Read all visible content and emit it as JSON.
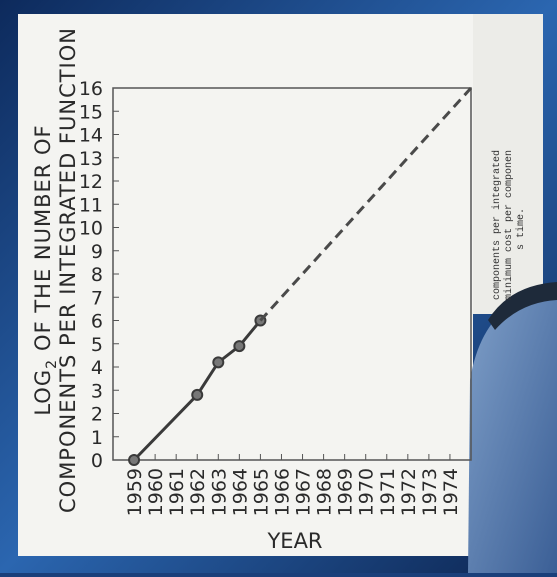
{
  "chart_data": {
    "type": "line",
    "y_label_line1": {
      "base": "LOG",
      "subscript": "2",
      "rest": "OF THE NUMBER OF"
    },
    "y_label_line2": "COMPONENTS PER INTEGRATED FUNCTION",
    "x_label": "YEAR",
    "xlim": [
      1958,
      1975
    ],
    "xticks": [
      1959,
      1960,
      1961,
      1962,
      1963,
      1964,
      1965,
      1966,
      1967,
      1968,
      1969,
      1970,
      1971,
      1972,
      1973,
      1974
    ],
    "ylim": [
      0,
      16
    ],
    "yticks": [
      0,
      1,
      2,
      3,
      4,
      5,
      6,
      7,
      8,
      9,
      10,
      11,
      12,
      13,
      14,
      15,
      16
    ],
    "series": [
      {
        "x": [
          1959,
          1962,
          1963,
          1964,
          1965
        ],
        "values": [
          0,
          2.8,
          4.2,
          4.9,
          6
        ],
        "color": "#3a3a3a",
        "markers": true,
        "dashed": false
      },
      {
        "x": [
          1965,
          1975
        ],
        "values": [
          6,
          16
        ],
        "color": "#4a4a4a",
        "markers": false,
        "dashed": true
      }
    ],
    "side_text": [
      "components per integrated",
      "minimum cost per componen",
      "s time."
    ]
  }
}
